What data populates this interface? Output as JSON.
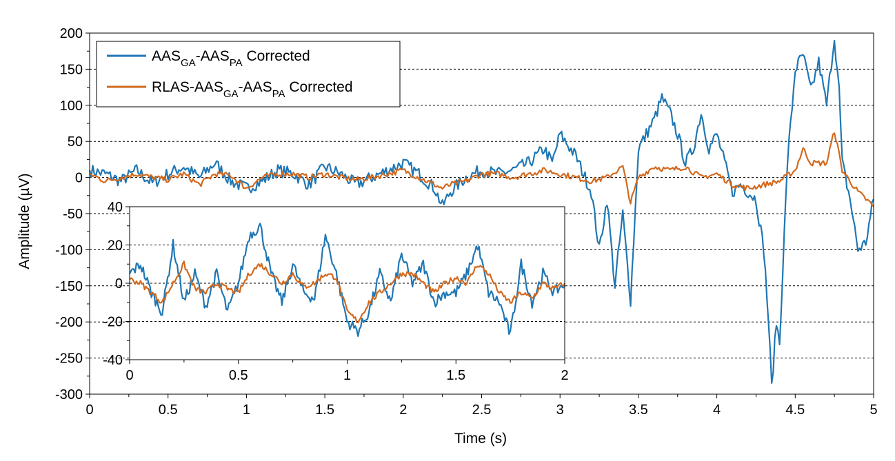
{
  "chart_data": {
    "type": "line",
    "main": {
      "xlabel": "Time (s)",
      "ylabel": "Amplitude (µV)",
      "xlim": [
        0,
        5
      ],
      "ylim": [
        -300,
        200
      ],
      "xticks": [
        0,
        0.5,
        1,
        1.5,
        2,
        2.5,
        3,
        3.5,
        4,
        4.5,
        5
      ],
      "xtick_labels": [
        "0",
        "0.5",
        "1",
        "1.5",
        "2",
        "2.5",
        "3",
        "3.5",
        "4",
        "4.5",
        "5"
      ],
      "yticks": [
        -300,
        -250,
        -200,
        -150,
        -100,
        -50,
        0,
        50,
        100,
        150,
        200
      ],
      "ytick_labels": [
        "-300",
        "-250",
        "-200",
        "-150",
        "-100",
        "-50",
        "0",
        "50",
        "100",
        "150",
        "200"
      ],
      "grid": "horizontal dashed",
      "legend": "top-left",
      "series": [
        {
          "name": "AAS_GA-AAS_PA Corrected",
          "color": "#1f77b4",
          "x": [
            0,
            0.1,
            0.2,
            0.3,
            0.4,
            0.5,
            0.6,
            0.7,
            0.8,
            0.9,
            1.0,
            1.1,
            1.2,
            1.3,
            1.4,
            1.5,
            1.6,
            1.7,
            1.8,
            1.9,
            2.0,
            2.1,
            2.2,
            2.25,
            2.3,
            2.4,
            2.5,
            2.6,
            2.7,
            2.8,
            2.9,
            2.95,
            3.0,
            3.1,
            3.2,
            3.25,
            3.3,
            3.35,
            3.4,
            3.45,
            3.5,
            3.6,
            3.65,
            3.7,
            3.75,
            3.8,
            3.85,
            3.9,
            3.95,
            4.0,
            4.05,
            4.1,
            4.15,
            4.2,
            4.25,
            4.3,
            4.33,
            4.35,
            4.38,
            4.4,
            4.45,
            4.5,
            4.55,
            4.6,
            4.65,
            4.7,
            4.75,
            4.78,
            4.8,
            4.85,
            4.9,
            4.95,
            5.0
          ],
          "y": [
            10,
            5,
            -5,
            10,
            -8,
            5,
            15,
            0,
            20,
            -5,
            -15,
            -5,
            10,
            5,
            -10,
            15,
            5,
            -10,
            0,
            10,
            20,
            5,
            -15,
            -40,
            -20,
            0,
            10,
            5,
            10,
            20,
            40,
            20,
            60,
            30,
            -20,
            -100,
            -30,
            -150,
            -50,
            -170,
            40,
            80,
            110,
            90,
            60,
            20,
            40,
            90,
            40,
            60,
            20,
            -20,
            -10,
            -20,
            -30,
            -100,
            -200,
            -290,
            -200,
            -230,
            20,
            150,
            170,
            120,
            160,
            100,
            195,
            120,
            20,
            -30,
            -100,
            -90,
            -30
          ]
        },
        {
          "name": "RLAS-AAS_GA-AAS_PA Corrected",
          "color": "#d2691e",
          "x": [
            0,
            0.1,
            0.2,
            0.3,
            0.4,
            0.5,
            0.6,
            0.7,
            0.8,
            0.9,
            1.0,
            1.1,
            1.2,
            1.3,
            1.4,
            1.5,
            1.6,
            1.7,
            1.8,
            1.9,
            2.0,
            2.1,
            2.2,
            2.25,
            2.3,
            2.4,
            2.5,
            2.6,
            2.7,
            2.8,
            2.9,
            3.0,
            3.1,
            3.2,
            3.3,
            3.4,
            3.45,
            3.5,
            3.6,
            3.7,
            3.8,
            3.9,
            4.0,
            4.1,
            4.2,
            4.3,
            4.4,
            4.5,
            4.55,
            4.6,
            4.7,
            4.75,
            4.8,
            4.9,
            5.0
          ],
          "y": [
            5,
            -5,
            0,
            5,
            0,
            -3,
            5,
            -10,
            5,
            3,
            -15,
            0,
            5,
            5,
            0,
            5,
            0,
            -3,
            0,
            5,
            10,
            0,
            -10,
            -15,
            -10,
            -5,
            5,
            5,
            0,
            5,
            10,
            5,
            0,
            -5,
            0,
            15,
            -35,
            0,
            15,
            10,
            15,
            0,
            5,
            -10,
            -15,
            -10,
            -5,
            10,
            40,
            20,
            20,
            65,
            10,
            -20,
            -40
          ]
        }
      ]
    },
    "inset": {
      "xlim": [
        0,
        2
      ],
      "ylim": [
        -40,
        40
      ],
      "xticks": [
        0,
        0.5,
        1,
        1.5,
        2
      ],
      "xtick_labels": [
        "0",
        "0.5",
        "1",
        "1.5",
        "2"
      ],
      "yticks": [
        -40,
        -20,
        0,
        20,
        40
      ],
      "ytick_labels": [
        "-40",
        "-20",
        "0",
        "20",
        "40"
      ],
      "series": [
        {
          "name": "AAS_GA-AAS_PA Corrected",
          "color": "#1f77b4",
          "x": [
            0,
            0.05,
            0.1,
            0.15,
            0.2,
            0.25,
            0.3,
            0.35,
            0.4,
            0.45,
            0.5,
            0.55,
            0.6,
            0.65,
            0.7,
            0.75,
            0.8,
            0.85,
            0.9,
            0.95,
            1.0,
            1.05,
            1.1,
            1.15,
            1.2,
            1.25,
            1.3,
            1.35,
            1.4,
            1.45,
            1.5,
            1.55,
            1.6,
            1.65,
            1.7,
            1.75,
            1.8,
            1.85,
            1.9,
            1.95,
            2.0
          ],
          "y": [
            5,
            10,
            -5,
            -15,
            20,
            -10,
            5,
            -12,
            5,
            -15,
            0,
            25,
            30,
            5,
            -10,
            10,
            -5,
            -8,
            25,
            5,
            -20,
            -25,
            -15,
            5,
            -10,
            15,
            0,
            10,
            -10,
            -5,
            -5,
            5,
            20,
            -5,
            -10,
            -27,
            10,
            -10,
            5,
            -5,
            0
          ]
        },
        {
          "name": "RLAS-AAS_GA-AAS_PA Corrected",
          "color": "#d2691e",
          "x": [
            0,
            0.05,
            0.1,
            0.15,
            0.2,
            0.25,
            0.3,
            0.35,
            0.4,
            0.45,
            0.5,
            0.55,
            0.6,
            0.65,
            0.7,
            0.75,
            0.8,
            0.85,
            0.9,
            0.95,
            1.0,
            1.05,
            1.1,
            1.15,
            1.2,
            1.25,
            1.3,
            1.35,
            1.4,
            1.45,
            1.5,
            1.55,
            1.6,
            1.65,
            1.7,
            1.75,
            1.8,
            1.85,
            1.9,
            1.95,
            2.0
          ],
          "y": [
            2,
            0,
            -5,
            -10,
            0,
            10,
            -3,
            -5,
            0,
            -3,
            -5,
            5,
            10,
            5,
            0,
            5,
            -2,
            0,
            5,
            3,
            -15,
            -20,
            -10,
            -5,
            0,
            5,
            5,
            0,
            -5,
            0,
            3,
            0,
            10,
            5,
            -5,
            -10,
            -5,
            -8,
            0,
            -3,
            0
          ]
        }
      ]
    },
    "legend_entries": [
      {
        "color": "#1f77b4",
        "parts": [
          "AAS",
          "GA",
          "-AAS",
          "PA",
          " Corrected"
        ]
      },
      {
        "color": "#d2691e",
        "parts": [
          "RLAS-AAS",
          "GA",
          "-AAS",
          "PA",
          " Corrected"
        ]
      }
    ]
  }
}
